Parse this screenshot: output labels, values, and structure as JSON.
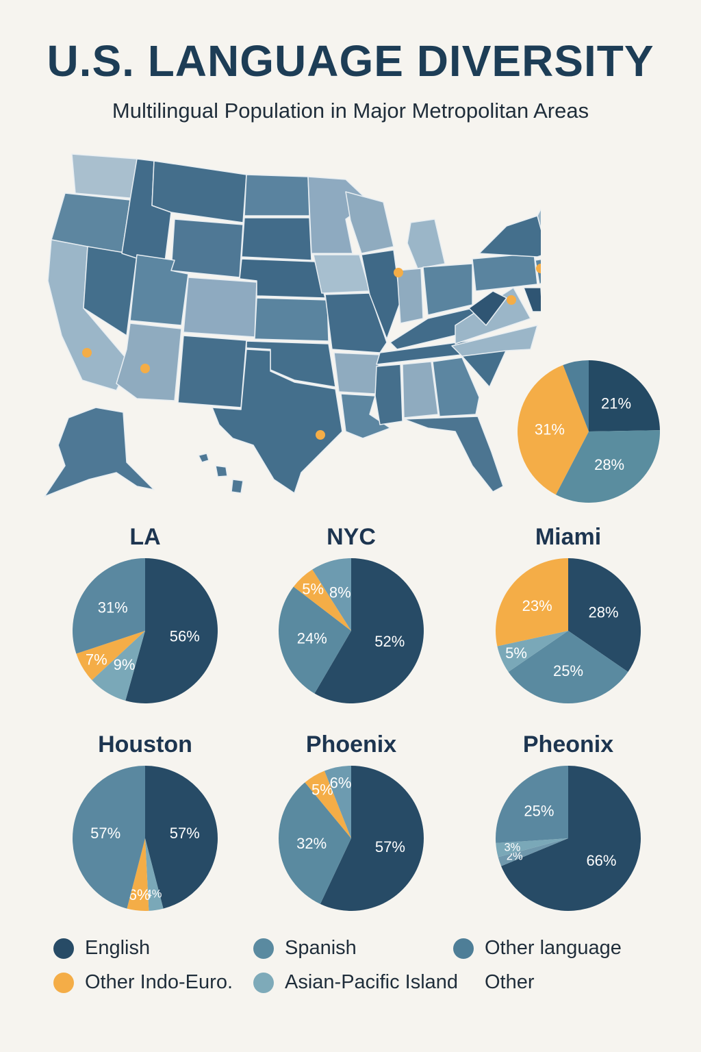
{
  "header": {
    "title": "U.S. LANGUAGE DIVERSITY",
    "subtitle": "Multilingual Population in Major Metropolitan Areas"
  },
  "colors": {
    "english": "#274b66",
    "spanish": "#5a8aa0",
    "other_language": "#4e7e97",
    "indo_euro": "#f4ad47",
    "asian_pacific": "#78a8b8",
    "map_dark": "#426c8a",
    "map_mid": "#5b85a0",
    "map_light": "#9db7c8",
    "marker": "#f4ad47"
  },
  "legend": [
    {
      "label": "English",
      "color": "#274b66"
    },
    {
      "label": "Spanish",
      "color": "#5a8aa0"
    },
    {
      "label": "Other language",
      "color": "#4e7e97"
    },
    {
      "label": "Other Indo-Euro.",
      "color": "#f4ad47"
    },
    {
      "label": "Asian-Pacific Island",
      "color": "#7eaab9"
    },
    {
      "label": "Other",
      "color": ""
    }
  ],
  "chart_data": [
    {
      "type": "pie",
      "title": "",
      "slices": [
        {
          "value": 21,
          "label": "21%",
          "color": "#244a64"
        },
        {
          "value": 28,
          "label": "28%",
          "color": "#5a8d9f"
        },
        {
          "value": 31,
          "label": "31%",
          "color": "#f4ad47"
        },
        {
          "value": 5,
          "label": "",
          "color": "#4f7f98"
        }
      ]
    },
    {
      "type": "pie",
      "title": "LA",
      "slices": [
        {
          "value": 56,
          "label": "56%",
          "color": "#274b66"
        },
        {
          "value": 9,
          "label": "9%",
          "color": "#7aa8b8"
        },
        {
          "value": 7,
          "label": "7%",
          "color": "#f4ad47"
        },
        {
          "value": 31,
          "label": "31%",
          "color": "#5a88a0"
        }
      ]
    },
    {
      "type": "pie",
      "title": "NYC",
      "slices": [
        {
          "value": 52,
          "label": "52%",
          "color": "#274b66"
        },
        {
          "value": 24,
          "label": "24%",
          "color": "#5a8aa0"
        },
        {
          "value": 5,
          "label": "5%",
          "color": "#f4ad47"
        },
        {
          "value": 8,
          "label": "8%",
          "color": "#6d9bb0"
        }
      ]
    },
    {
      "type": "pie",
      "title": "Miami",
      "slices": [
        {
          "value": 28,
          "label": "28%",
          "color": "#274b66"
        },
        {
          "value": 25,
          "label": "25%",
          "color": "#5a8aa0"
        },
        {
          "value": 5,
          "label": "5%",
          "color": "#7aa8b8"
        },
        {
          "value": 23,
          "label": "23%",
          "color": "#f4ad47"
        }
      ]
    },
    {
      "type": "pie",
      "title": "Houston",
      "slices": [
        {
          "value": 57,
          "label": "57%",
          "color": "#274b66"
        },
        {
          "value": 4,
          "label": "4%",
          "color": "#7aa8b8"
        },
        {
          "value": 6,
          "label": "6%",
          "color": "#f4ad47"
        },
        {
          "value": 57,
          "label": "57%",
          "color": "#5a88a0"
        }
      ]
    },
    {
      "type": "pie",
      "title": "Phoenix",
      "slices": [
        {
          "value": 57,
          "label": "57%",
          "color": "#274b66"
        },
        {
          "value": 32,
          "label": "32%",
          "color": "#5a8aa0"
        },
        {
          "value": 5,
          "label": "5%",
          "color": "#f4ad47"
        },
        {
          "value": 6,
          "label": "6%",
          "color": "#6d9bb0"
        }
      ]
    },
    {
      "type": "pie",
      "title": "Pheonix",
      "slices": [
        {
          "value": 66,
          "label": "66%",
          "color": "#274b66"
        },
        {
          "value": 2,
          "label": "2%",
          "color": "#6f98ad"
        },
        {
          "value": 3,
          "label": "3%",
          "color": "#7aa8b8"
        },
        {
          "value": 25,
          "label": "25%",
          "color": "#5a88a0"
        }
      ]
    }
  ]
}
